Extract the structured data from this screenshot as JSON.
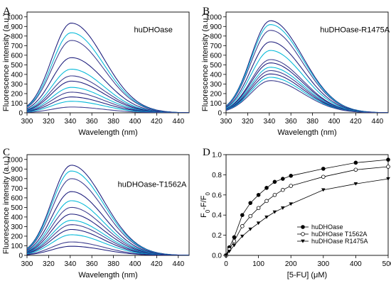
{
  "chart_data": [
    {
      "panel": "A",
      "type": "line",
      "label": "huDHOase",
      "xlabel": "Wavelength (nm)",
      "ylabel": "Fluorescence intensity (a.u.)",
      "xlim": [
        300,
        450
      ],
      "ylim": [
        0,
        1050
      ],
      "xticks": [
        300,
        320,
        340,
        360,
        380,
        400,
        420,
        440
      ],
      "yticks": [
        0,
        100,
        200,
        300,
        400,
        500,
        600,
        700,
        800,
        900,
        1000
      ],
      "peak_x": 341,
      "curve_colors": [
        "#1a1a7a",
        "#00b8d8",
        "#3a3a8c"
      ],
      "peaks": [
        935,
        835,
        755,
        575,
        455,
        385,
        330,
        265,
        215,
        165,
        120,
        60
      ]
    },
    {
      "panel": "B",
      "type": "line",
      "label": "huDHOase-R1475A",
      "xlabel": "Wavelength (nm)",
      "ylabel": "Fluorescence intensity (a.u.)",
      "xlim": [
        300,
        450
      ],
      "ylim": [
        0,
        1050
      ],
      "xticks": [
        300,
        320,
        340,
        360,
        380,
        400,
        420,
        440
      ],
      "yticks": [
        0,
        100,
        200,
        300,
        400,
        500,
        600,
        700,
        800,
        900,
        1000
      ],
      "peak_x": 341,
      "curve_colors": [
        "#1a1a7a",
        "#00b8d8",
        "#3a3a8c"
      ],
      "peaks": [
        960,
        920,
        860,
        740,
        650,
        555,
        520,
        475,
        440,
        405,
        370,
        335
      ]
    },
    {
      "panel": "C",
      "type": "line",
      "label": "huDHOase-T1562A",
      "xlabel": "Wavelength (nm)",
      "ylabel": "Fluorescence intensity (a.u.)",
      "xlim": [
        300,
        450
      ],
      "ylim": [
        0,
        1050
      ],
      "xticks": [
        300,
        320,
        340,
        360,
        380,
        400,
        420,
        440
      ],
      "yticks": [
        0,
        100,
        200,
        300,
        400,
        500,
        600,
        700,
        800,
        900,
        1000
      ],
      "peak_x": 341,
      "curve_colors": [
        "#1a1a7a",
        "#00b8d8",
        "#3a3a8c"
      ],
      "peaks": [
        940,
        880,
        800,
        665,
        570,
        500,
        430,
        365,
        320,
        270,
        215,
        140,
        95
      ]
    },
    {
      "panel": "D",
      "type": "line",
      "xlabel": "[5-FU] (μM)",
      "ylabel": "F0-F/F0",
      "xlim": [
        0,
        500
      ],
      "ylim": [
        0,
        1.0
      ],
      "xticks": [
        0,
        100,
        200,
        300,
        400,
        500
      ],
      "yticks": [
        0.0,
        0.2,
        0.4,
        0.6,
        0.8,
        1.0
      ],
      "yticklabels": [
        "0.0",
        "0.2",
        "0.4",
        "0.6",
        "0.8",
        "1.0"
      ],
      "legend_position": "lower-right",
      "series": [
        {
          "name": "huDHOase",
          "marker": "filled-circle",
          "x": [
            0,
            10,
            25,
            50,
            75,
            100,
            125,
            150,
            175,
            200,
            300,
            400,
            500
          ],
          "y": [
            0.0,
            0.08,
            0.18,
            0.4,
            0.52,
            0.6,
            0.67,
            0.73,
            0.76,
            0.79,
            0.86,
            0.92,
            0.95
          ]
        },
        {
          "name": "huDHOase T1562A",
          "marker": "open-circle",
          "x": [
            0,
            10,
            25,
            50,
            75,
            100,
            125,
            150,
            175,
            200,
            300,
            400,
            500
          ],
          "y": [
            0.0,
            0.06,
            0.14,
            0.29,
            0.39,
            0.47,
            0.54,
            0.6,
            0.65,
            0.69,
            0.78,
            0.85,
            0.88
          ]
        },
        {
          "name": "huDHOase R1475A",
          "marker": "filled-triangle-down",
          "x": [
            0,
            10,
            25,
            50,
            75,
            100,
            125,
            150,
            175,
            200,
            300,
            400,
            500
          ],
          "y": [
            0.0,
            0.04,
            0.1,
            0.19,
            0.26,
            0.32,
            0.38,
            0.43,
            0.47,
            0.51,
            0.65,
            0.71,
            0.76
          ]
        }
      ]
    }
  ]
}
